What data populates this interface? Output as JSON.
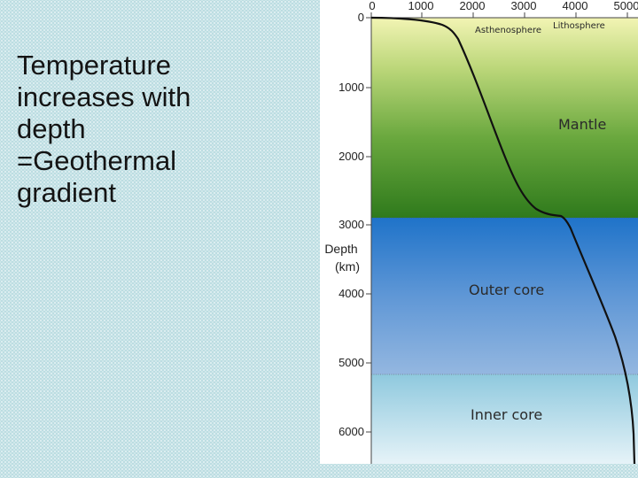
{
  "slide": {
    "lines": [
      "Temperature",
      "increases with",
      "depth",
      "=Geothermal",
      "gradient"
    ]
  },
  "figure": {
    "x_ticks": [
      "0",
      "1000",
      "2000",
      "3000",
      "4000",
      "5000"
    ],
    "y_ticks": [
      "0",
      "1000",
      "2000",
      "3000",
      "4000",
      "5000",
      "6000"
    ],
    "y_axis_label": [
      "Depth",
      "(km)"
    ],
    "layers": {
      "lithosphere": "Lithosphere",
      "asthenosphere": "Asthenosphere",
      "mantle": "Mantle",
      "outer_core": "Outer core",
      "inner_core": "Inner core"
    },
    "colors": {
      "mantle_top": "#f2f4b4",
      "mantle_bottom": "#2f7a1c",
      "outer_core_top": "#1f73c9",
      "outer_core_bottom": "#94b7e0",
      "inner_core_top": "#8fc9de",
      "inner_core_bottom": "#e6f3f8",
      "curve": "#111111"
    }
  }
}
